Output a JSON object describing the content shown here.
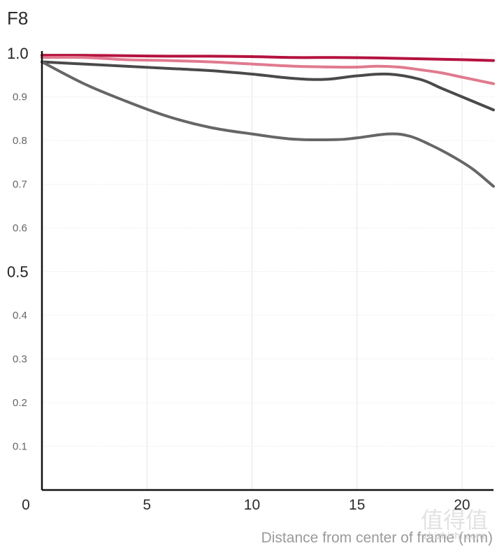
{
  "chart_data": {
    "type": "line",
    "title": "F8",
    "xlabel": "Distance from center of frame (mm)",
    "ylabel": "",
    "xlim": [
      0,
      21.5
    ],
    "ylim": [
      0,
      1.0
    ],
    "x_ticks": [
      0,
      5,
      10,
      15,
      20
    ],
    "x_tick_labels": [
      "0",
      "5",
      "10",
      "15",
      "20"
    ],
    "y_ticks": [
      0.1,
      0.2,
      0.3,
      0.4,
      0.5,
      0.6,
      0.7,
      0.8,
      0.9,
      1.0
    ],
    "y_tick_labels": [
      "0.1",
      "0.2",
      "0.3",
      "0.4",
      "0.5",
      "0.6",
      "0.7",
      "0.8",
      "0.9",
      "1.0"
    ],
    "major_y_ticks": [
      0.5,
      1.0
    ],
    "grid": true,
    "legend": "none",
    "series": [
      {
        "color": "#b5123f",
        "x": [
          0,
          2,
          4,
          6,
          8,
          10,
          12,
          14,
          16,
          18,
          20,
          21.5
        ],
        "y": [
          0.995,
          0.995,
          0.994,
          0.993,
          0.993,
          0.992,
          0.99,
          0.99,
          0.989,
          0.987,
          0.985,
          0.983
        ]
      },
      {
        "color": "#e07a8f",
        "x": [
          0,
          2,
          4,
          6,
          8,
          10,
          12,
          14,
          15,
          16,
          17,
          18,
          19,
          20,
          21.5
        ],
        "y": [
          0.99,
          0.99,
          0.985,
          0.983,
          0.98,
          0.975,
          0.97,
          0.968,
          0.968,
          0.97,
          0.968,
          0.962,
          0.955,
          0.945,
          0.93
        ]
      },
      {
        "color": "#4a4a4a",
        "x": [
          0,
          2,
          4,
          6,
          8,
          10,
          12,
          13.5,
          15,
          16.5,
          18,
          19,
          20,
          21.5
        ],
        "y": [
          0.98,
          0.975,
          0.97,
          0.965,
          0.96,
          0.952,
          0.942,
          0.94,
          0.948,
          0.952,
          0.94,
          0.92,
          0.9,
          0.87
        ]
      },
      {
        "color": "#666666",
        "x": [
          0,
          2,
          4,
          6,
          8,
          10,
          12,
          14,
          15,
          16.5,
          17.5,
          18.5,
          19.5,
          20.5,
          21.5
        ],
        "y": [
          0.98,
          0.93,
          0.89,
          0.855,
          0.83,
          0.815,
          0.803,
          0.802,
          0.806,
          0.815,
          0.81,
          0.79,
          0.765,
          0.735,
          0.695
        ]
      }
    ]
  },
  "watermark": {
    "main": "值得值",
    "sub": "zhizhizhi.com"
  }
}
